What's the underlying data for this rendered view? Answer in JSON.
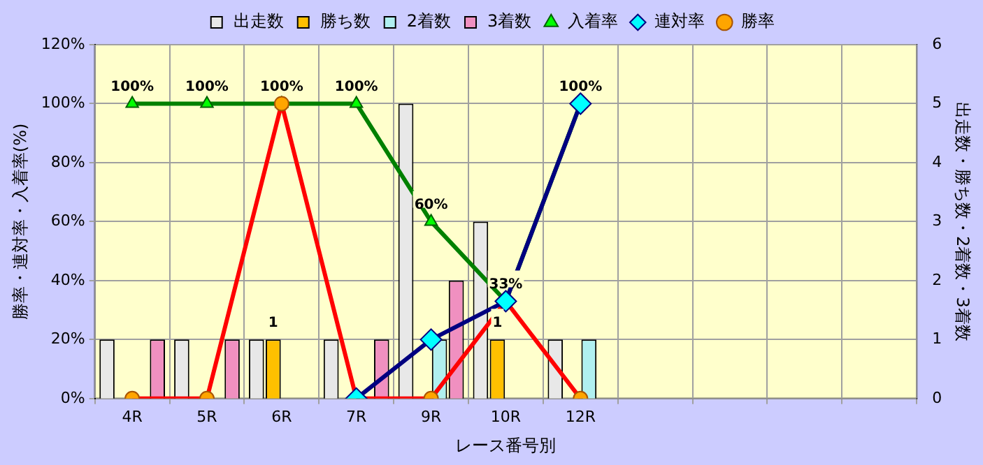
{
  "chart_data": {
    "type": "bar",
    "xlabel": "レース番号別",
    "ylabel": "勝率・連対率・入着率(%)",
    "y2label": "出走数・勝ち数・2着数・3着数",
    "categories": [
      "4R",
      "5R",
      "6R",
      "7R",
      "9R",
      "10R",
      "12R",
      null,
      null,
      null,
      null
    ],
    "series": [
      {
        "name": "出走数",
        "axis": "y2",
        "color": "#e8e8e8",
        "values": [
          1,
          1,
          1,
          1,
          5,
          3,
          1,
          null,
          null,
          null,
          null
        ]
      },
      {
        "name": "勝ち数",
        "axis": "y2",
        "color": "#ffc000",
        "values": [
          0,
          0,
          1,
          0,
          0,
          1,
          0,
          null,
          null,
          null,
          null
        ],
        "value_labels": [
          null,
          null,
          "1",
          null,
          null,
          "1",
          null,
          null,
          null,
          null,
          null
        ]
      },
      {
        "name": "2着数",
        "axis": "y2",
        "color": "#b0f0f0",
        "values": [
          0,
          0,
          0,
          0,
          1,
          0,
          1,
          null,
          null,
          null,
          null
        ]
      },
      {
        "name": "3着数",
        "axis": "y2",
        "color": "#f090c0",
        "values": [
          1,
          1,
          0,
          1,
          2,
          0,
          0,
          null,
          null,
          null,
          null
        ]
      },
      {
        "name": "入着率",
        "type": "line",
        "axis": "y",
        "color": "#008000",
        "marker": "triangle",
        "values": [
          100,
          100,
          100,
          100,
          60,
          33,
          100,
          null,
          null,
          null,
          null
        ],
        "value_labels": [
          "100%",
          "100%",
          "100%",
          "100%",
          "60%",
          "33%",
          "100%",
          null,
          null,
          null,
          null
        ]
      },
      {
        "name": "連対率",
        "type": "line",
        "axis": "y",
        "color": "#000080",
        "marker": "diamond",
        "values": [
          null,
          null,
          null,
          0,
          20,
          33,
          100,
          null,
          null,
          null,
          null
        ]
      },
      {
        "name": "勝率",
        "type": "line",
        "axis": "y",
        "color": "#ff0000",
        "marker": "circle",
        "values": [
          0,
          0,
          100,
          0,
          0,
          33,
          0,
          null,
          null,
          null,
          null
        ]
      }
    ],
    "ylim": [
      0,
      120
    ],
    "yticks": [
      {
        "value": 0,
        "label": "0%"
      },
      {
        "value": 20,
        "label": "20%"
      },
      {
        "value": 40,
        "label": "40%"
      },
      {
        "value": 60,
        "label": "60%"
      },
      {
        "value": 80,
        "label": "80%"
      },
      {
        "value": 100,
        "label": "100%"
      },
      {
        "value": 120,
        "label": "120%"
      }
    ],
    "y2lim": [
      0,
      6
    ],
    "y2ticks": [
      0,
      1,
      2,
      3,
      4,
      5,
      6
    ],
    "grid": true,
    "legend": "top"
  }
}
